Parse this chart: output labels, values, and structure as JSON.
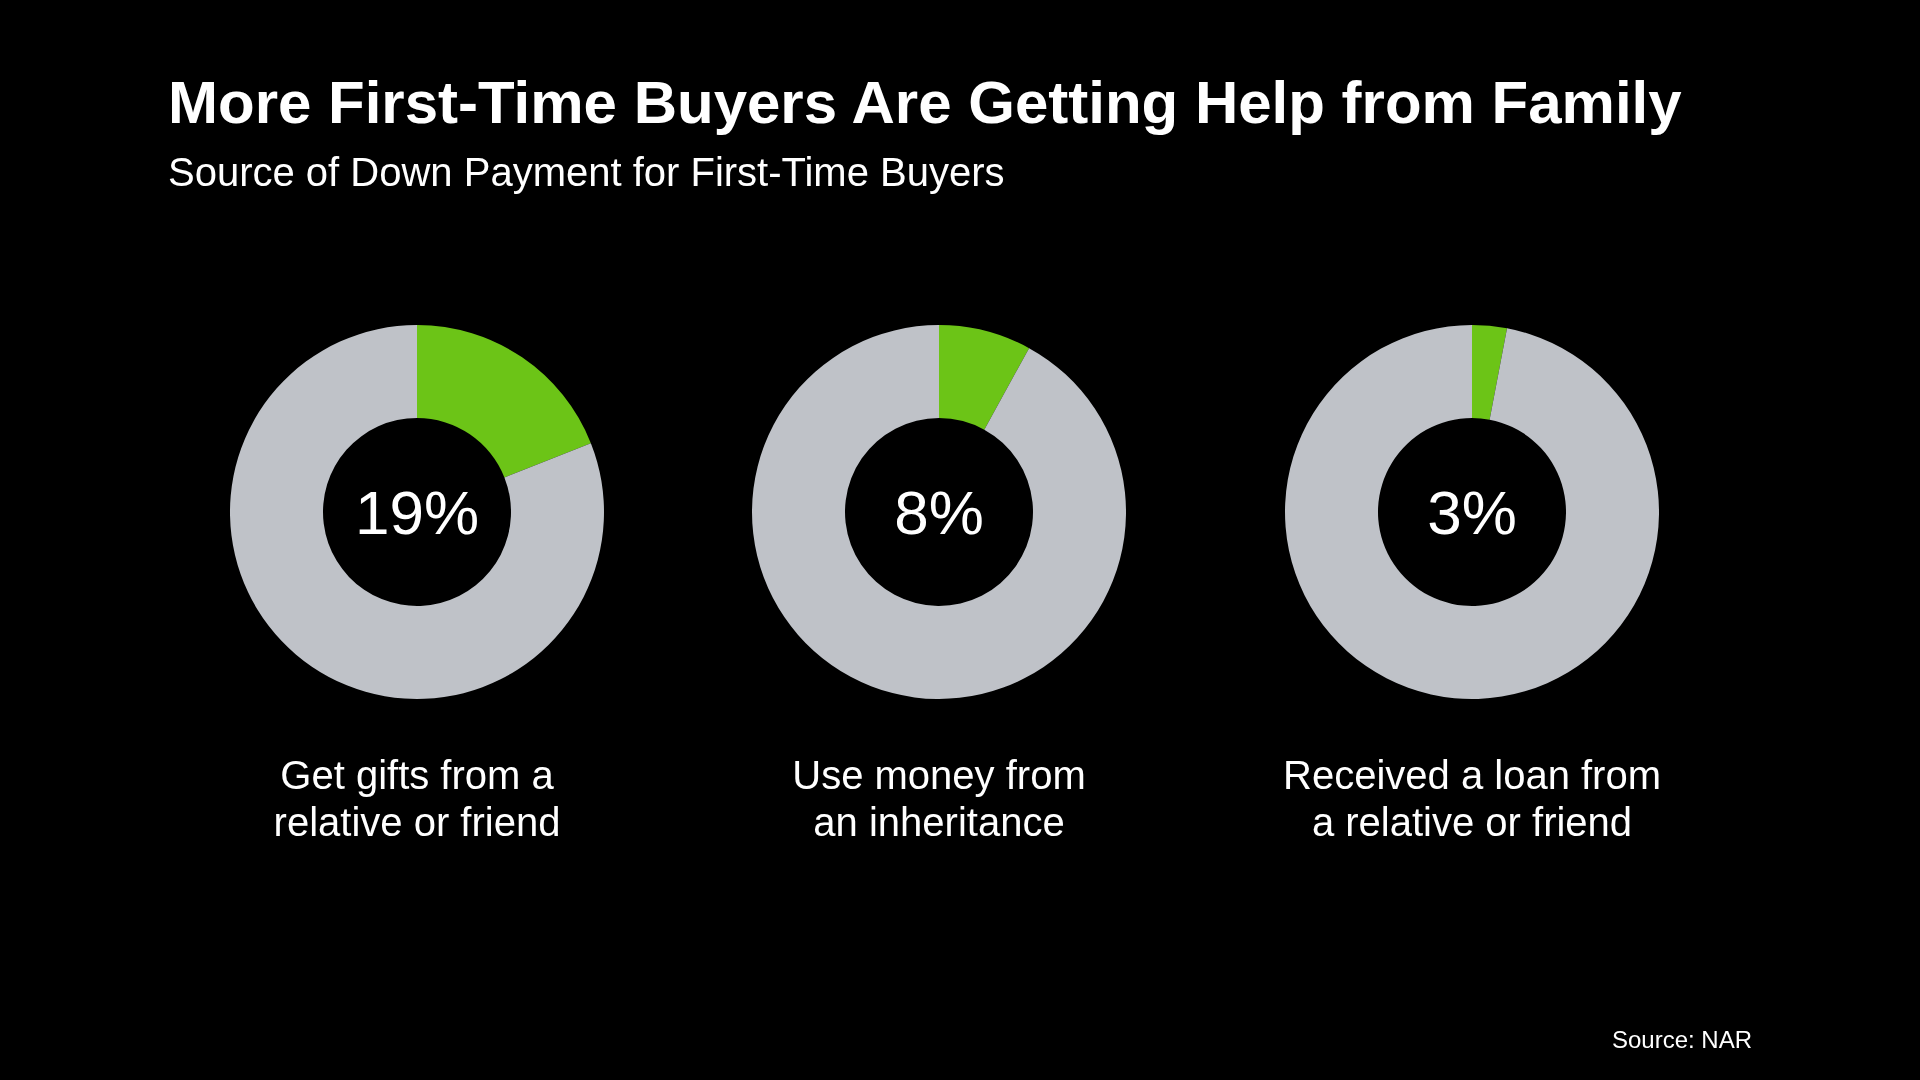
{
  "chart_data": [
    {
      "type": "donut",
      "title": "More First-Time Buyers Are Getting Help from Family",
      "subtitle": "Source of Down Payment for First-Time Buyers",
      "xlabel": "Get gifts from a relative or friend",
      "categories": [
        null,
        null
      ],
      "values": [
        19,
        81
      ],
      "colors": [
        "#6cc417",
        "#bfc2c8"
      ],
      "annotations": [
        "19%"
      ]
    },
    {
      "type": "donut",
      "xlabel": "Use money from an inheritance",
      "categories": [
        null,
        null
      ],
      "values": [
        8,
        92
      ],
      "colors": [
        "#6cc417",
        "#bfc2c8"
      ],
      "annotations": [
        "8%"
      ]
    },
    {
      "type": "donut",
      "xlabel": "Received a loan from a relative or friend",
      "categories": [
        null,
        null
      ],
      "values": [
        3,
        97
      ],
      "colors": [
        "#6cc417",
        "#bfc2c8"
      ],
      "annotations": [
        "3%",
        "Source: NAR"
      ]
    }
  ]
}
